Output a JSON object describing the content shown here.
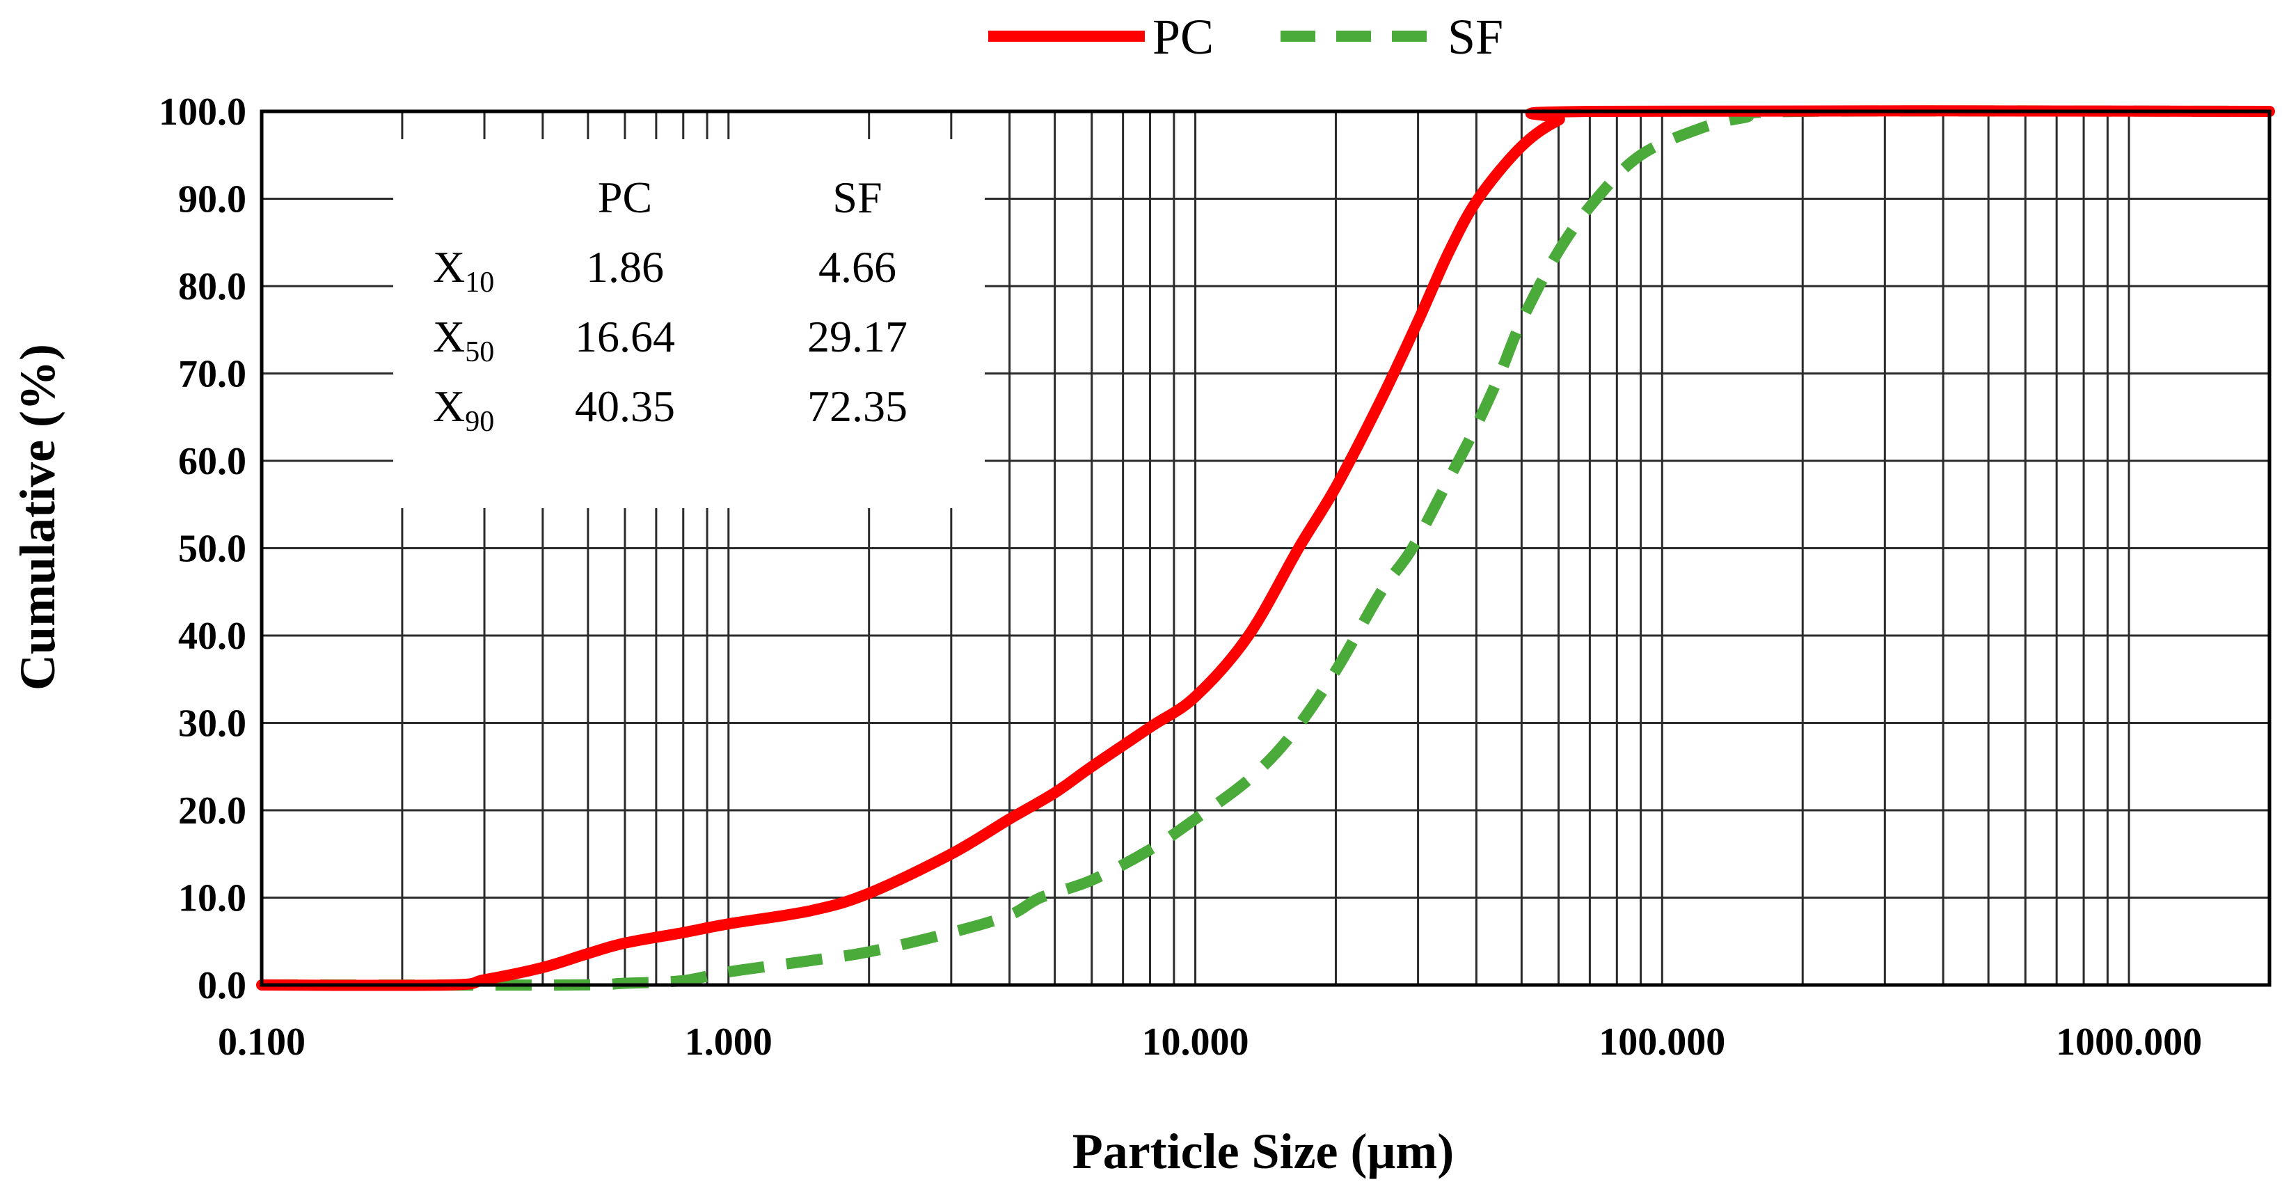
{
  "chart_data": {
    "type": "line",
    "xscale": "log",
    "xlabel": "Particle Size (μm)",
    "ylabel": "Cumulative  (%)",
    "xlim": [
      0.1,
      2000
    ],
    "ylim": [
      0,
      100
    ],
    "x_ticks": [
      "0.100",
      "1.000",
      "10.000",
      "100.000",
      "1000.000"
    ],
    "y_ticks": [
      "0.0",
      "10.0",
      "20.0",
      "30.0",
      "40.0",
      "50.0",
      "60.0",
      "70.0",
      "80.0",
      "90.0",
      "100.0"
    ],
    "grid": true,
    "legend_position": "top-center",
    "series": [
      {
        "name": "PC",
        "color": "#ff0000",
        "style": "solid",
        "points": [
          [
            0.1,
            0
          ],
          [
            0.25,
            0
          ],
          [
            0.3,
            0.6
          ],
          [
            0.4,
            2
          ],
          [
            0.5,
            3.6
          ],
          [
            0.6,
            4.8
          ],
          [
            0.8,
            6
          ],
          [
            1.0,
            7
          ],
          [
            1.5,
            8.5
          ],
          [
            2.0,
            10.5
          ],
          [
            3.0,
            15
          ],
          [
            4.0,
            19
          ],
          [
            5.0,
            22
          ],
          [
            6.0,
            25
          ],
          [
            8.0,
            29.5
          ],
          [
            10.0,
            33
          ],
          [
            13.0,
            40
          ],
          [
            16.64,
            50
          ],
          [
            20.0,
            57
          ],
          [
            25.0,
            67
          ],
          [
            30.0,
            76
          ],
          [
            35.0,
            84
          ],
          [
            40.35,
            90
          ],
          [
            50.0,
            96
          ],
          [
            60.0,
            99
          ],
          [
            70.0,
            100
          ],
          [
            2000,
            100
          ]
        ]
      },
      {
        "name": "SF",
        "color": "#4aaa3a",
        "style": "dashed",
        "points": [
          [
            0.1,
            0
          ],
          [
            0.45,
            0
          ],
          [
            0.6,
            0.2
          ],
          [
            0.8,
            0.5
          ],
          [
            1.0,
            1.5
          ],
          [
            1.5,
            2.8
          ],
          [
            2.0,
            3.8
          ],
          [
            3.0,
            6
          ],
          [
            4.0,
            8
          ],
          [
            4.66,
            10
          ],
          [
            6.0,
            12
          ],
          [
            8.0,
            15.5
          ],
          [
            10.0,
            19
          ],
          [
            13.0,
            23.5
          ],
          [
            16.0,
            28.5
          ],
          [
            20.0,
            36
          ],
          [
            25.0,
            45
          ],
          [
            29.17,
            50
          ],
          [
            35.0,
            58
          ],
          [
            40.0,
            64
          ],
          [
            45.0,
            70
          ],
          [
            50.0,
            76
          ],
          [
            60.0,
            84
          ],
          [
            72.35,
            90
          ],
          [
            90.0,
            95
          ],
          [
            120.0,
            98
          ],
          [
            150.0,
            99.3
          ],
          [
            200.0,
            100
          ],
          [
            2000,
            100
          ]
        ]
      }
    ],
    "table": {
      "headers": [
        "",
        "PC",
        "SF"
      ],
      "rows": [
        {
          "label": "X",
          "sub": "10",
          "pc": "1.86",
          "sf": "4.66"
        },
        {
          "label": "X",
          "sub": "50",
          "pc": "16.64",
          "sf": "29.17"
        },
        {
          "label": "X",
          "sub": "90",
          "pc": "40.35",
          "sf": "72.35"
        }
      ]
    }
  }
}
